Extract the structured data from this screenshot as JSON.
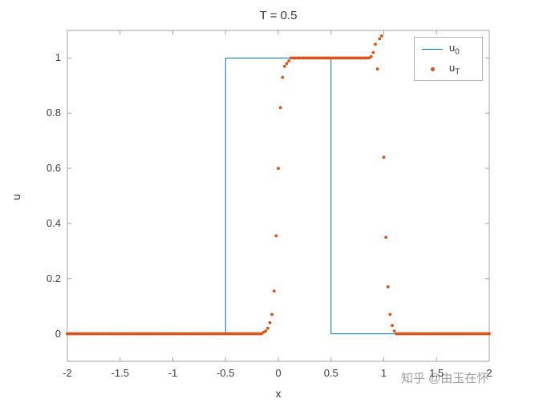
{
  "figure": {
    "watermark": "知乎 @由玉在怀"
  },
  "chart_data": {
    "type": "line+scatter",
    "title": "T = 0.5",
    "xlabel": "x",
    "ylabel": "u",
    "xlim": [
      -2,
      2
    ],
    "ylim": [
      -0.1,
      1.1
    ],
    "grid": false,
    "x_tick_labels": [
      "-2",
      "-1.5",
      "-1",
      "-0.5",
      "0",
      "0.5",
      "1",
      "1.5",
      "2"
    ],
    "y_tick_labels": [
      "0",
      "0.2",
      "0.4",
      "0.6",
      "0.8",
      "1"
    ],
    "legend": {
      "position": "northeast",
      "entries": [
        {
          "base": "u",
          "sub": "0",
          "marker": "line",
          "color": "#0072BD"
        },
        {
          "base": "u",
          "sub": "T",
          "marker": "dot",
          "color": "#D95319"
        }
      ]
    },
    "series": [
      {
        "name": "u_0",
        "type": "line",
        "color": "#0072BD",
        "points": [
          [
            -2,
            0
          ],
          [
            -0.5,
            0
          ],
          [
            -0.5,
            1
          ],
          [
            0.5,
            1
          ],
          [
            0.5,
            0
          ],
          [
            2,
            0
          ]
        ]
      },
      {
        "name": "u_T",
        "type": "scatter",
        "color": "#D95319",
        "x_start": -2,
        "x_step": 0.02,
        "values": [
          0,
          0,
          0,
          0,
          0,
          0,
          0,
          0,
          0,
          0,
          0,
          0,
          0,
          0,
          0,
          0,
          0,
          0,
          0,
          0,
          0,
          0,
          0,
          0,
          0,
          0,
          0,
          0,
          0,
          0,
          0,
          0,
          0,
          0,
          0,
          0,
          0,
          0,
          0,
          0,
          0,
          0,
          0,
          0,
          0,
          0,
          0,
          0,
          0,
          0,
          0,
          0,
          0,
          0,
          0,
          0,
          0,
          0,
          0,
          0,
          0,
          0,
          0,
          0,
          0,
          0,
          0,
          0,
          0,
          0,
          0,
          0,
          0,
          0,
          0,
          0,
          0,
          0,
          0,
          0,
          0,
          0,
          0,
          0,
          0,
          0,
          0,
          0,
          0,
          0,
          0,
          0,
          0,
          0.005,
          0.01,
          0.02,
          0.04,
          0.07,
          0.155,
          0.355,
          0.6,
          0.82,
          0.93,
          0.97,
          0.98,
          0.99,
          1,
          1,
          1,
          1,
          1,
          1,
          1,
          1,
          1,
          1,
          1,
          1,
          1,
          1,
          1,
          1,
          1,
          1,
          1,
          1,
          1,
          1,
          1,
          1,
          1,
          1,
          1,
          1,
          1,
          1,
          1,
          1,
          1,
          1,
          1,
          1,
          1,
          1,
          1.005,
          1.02,
          1.05,
          0.96,
          1.07,
          1.08,
          0.64,
          0.35,
          0.17,
          0.07,
          0.03,
          0.01,
          0,
          0,
          0,
          0,
          0,
          0,
          0,
          0,
          0,
          0,
          0,
          0,
          0,
          0,
          0,
          0,
          0,
          0,
          0,
          0,
          0,
          0,
          0,
          0,
          0,
          0,
          0,
          0,
          0,
          0,
          0,
          0,
          0,
          0,
          0,
          0,
          0,
          0,
          0,
          0,
          0,
          0,
          0,
          0,
          0
        ]
      }
    ]
  }
}
